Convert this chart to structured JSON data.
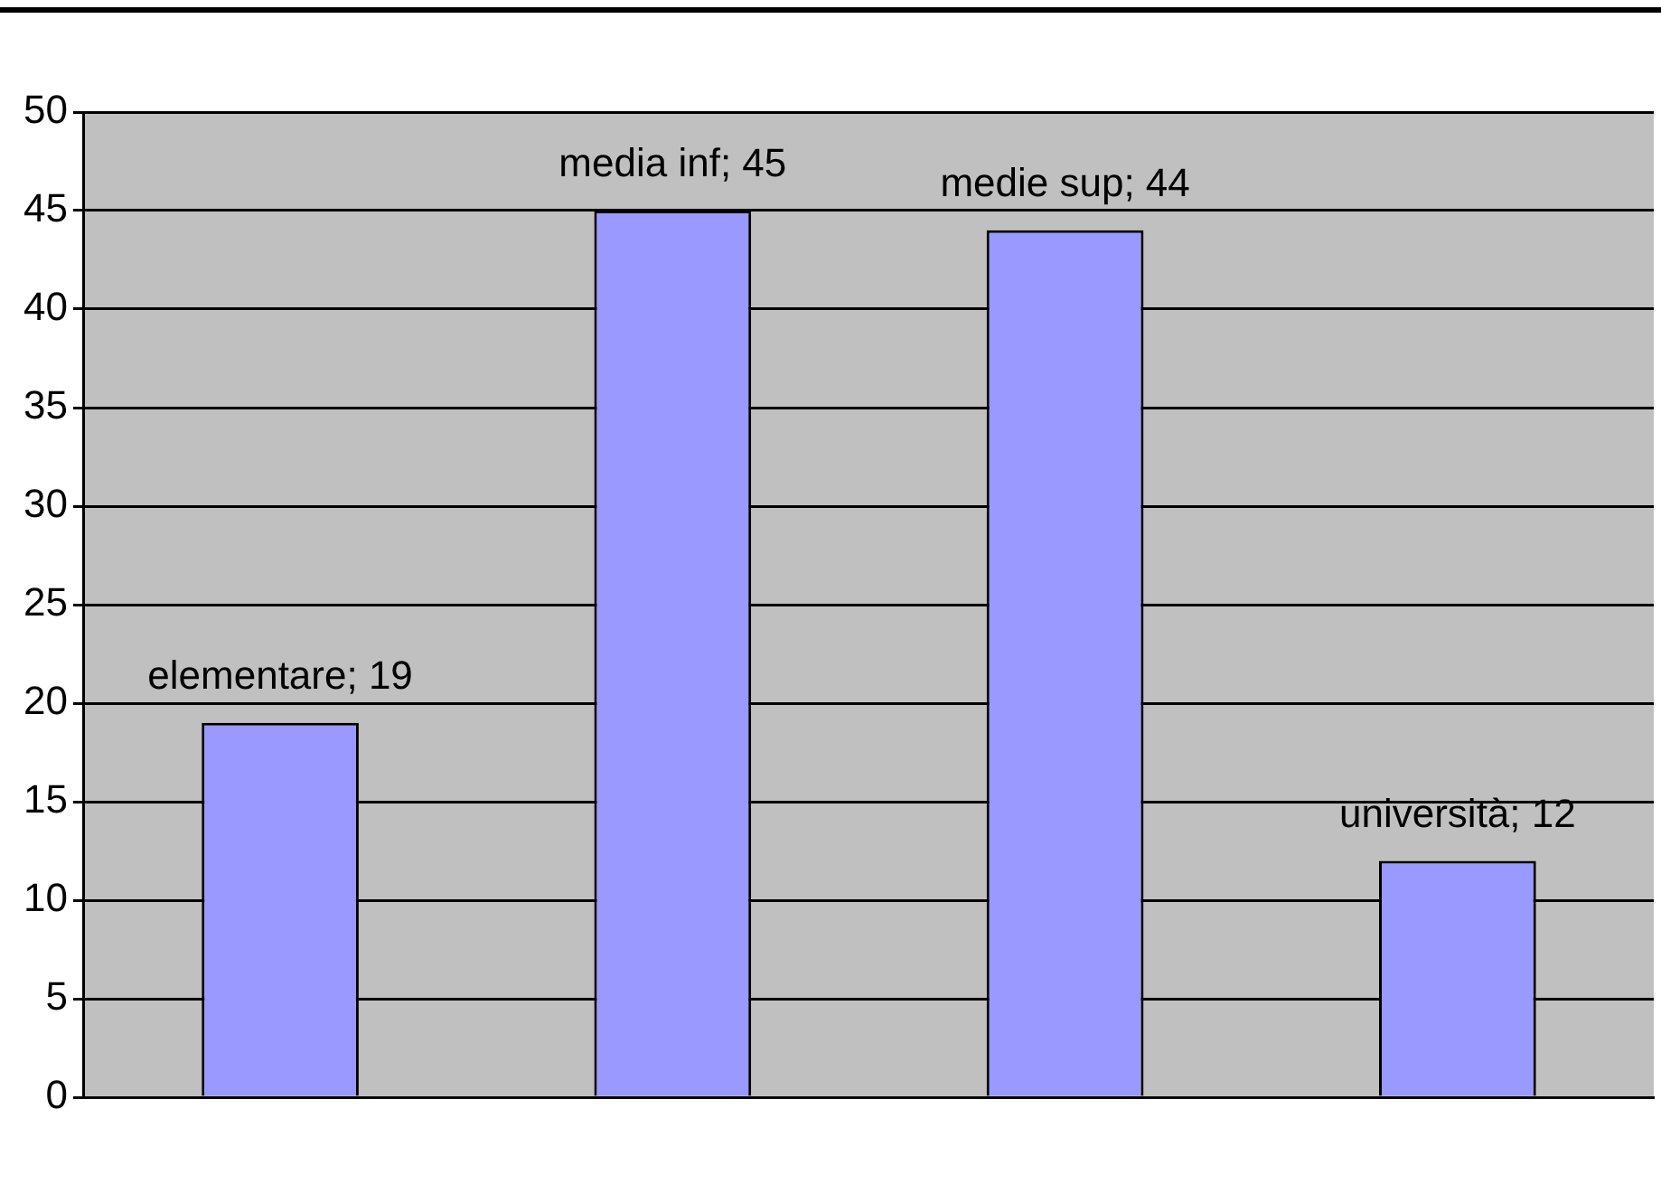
{
  "chart_data": {
    "type": "bar",
    "categories": [
      null,
      null,
      null,
      null
    ],
    "values": [
      19,
      45,
      44,
      12
    ],
    "color": "#9999ff",
    "value_labels": [
      "elementare; 19",
      "media inf; 45",
      "medie sup; 44",
      "università; 12"
    ],
    "ylim": [
      0,
      50
    ],
    "yticks": [
      0,
      5,
      10,
      15,
      20,
      25,
      30,
      35,
      40,
      45,
      50
    ],
    "grid": "y",
    "tick_labels": "y"
  }
}
